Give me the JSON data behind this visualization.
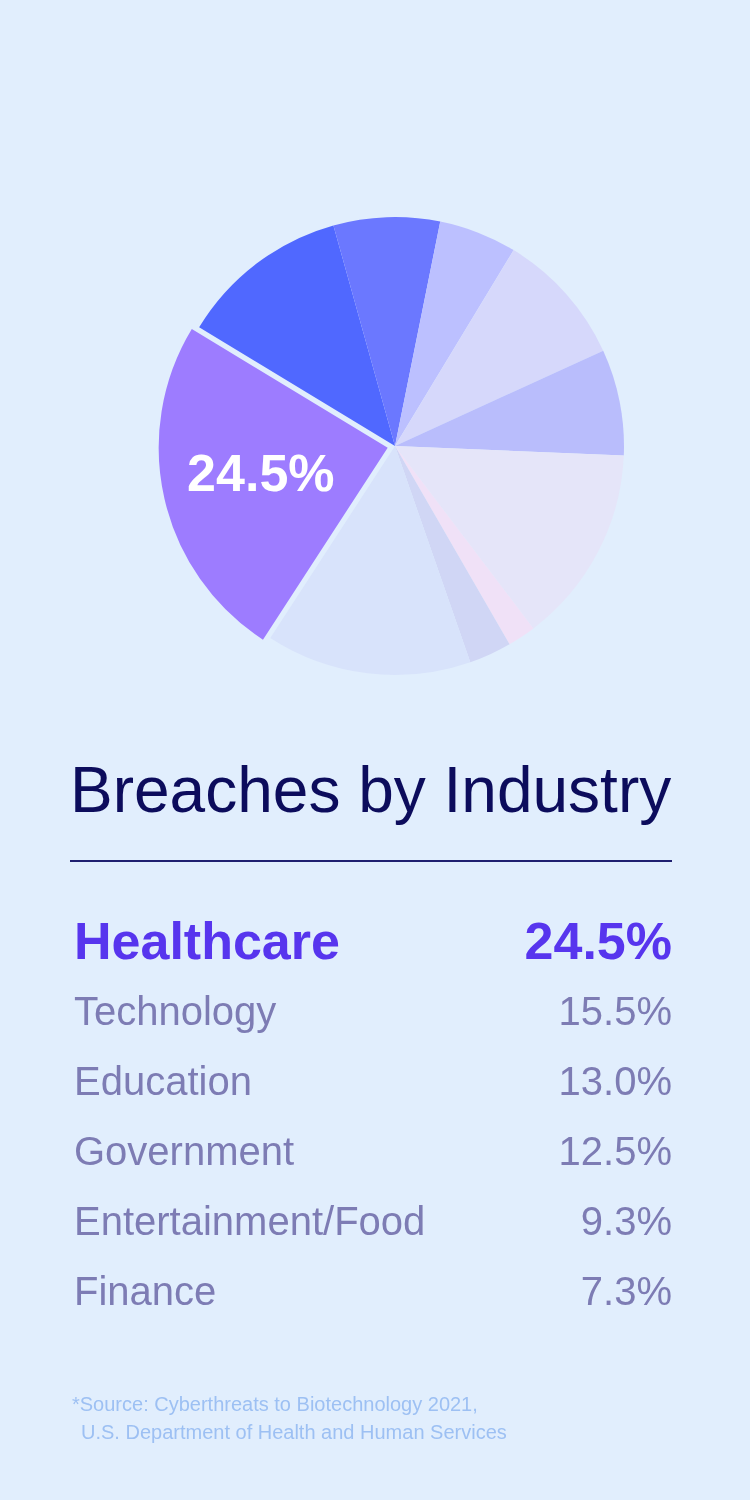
{
  "chart_data": [
    {
      "type": "pie",
      "categories": [
        null,
        null,
        null,
        null,
        null,
        null,
        null,
        null,
        null,
        null
      ],
      "values": [
        24.5,
        12,
        7.5,
        5.5,
        9.5,
        7.5,
        14,
        2,
        3,
        14.5
      ],
      "colors": [
        "#9d7cff",
        "#5068ff",
        "#6b78ff",
        "#bcc0ff",
        "#d6d8fb",
        "#b9bdfc",
        "#e5e5f9",
        "#f0e1f7",
        "#d0d6f5",
        "#d8e3fb"
      ],
      "value_labels": [
        "24.5%",
        null,
        null,
        null,
        null,
        null,
        null,
        null,
        null,
        null
      ],
      "legend": false
    },
    {
      "type": "other",
      "title": "Breaches by Industry",
      "annotations": [
        "Healthcare",
        "24.5%",
        "Technology",
        "15.5%",
        "Education",
        "13.0%",
        "Government",
        "12.5%",
        "Entertainment/Food",
        "9.3%",
        "Finance",
        "7.3%",
        "*Source: Cyberthreats to Biotechnology 2021,\nU.S. Department of Health and Human Services"
      ]
    }
  ]
}
